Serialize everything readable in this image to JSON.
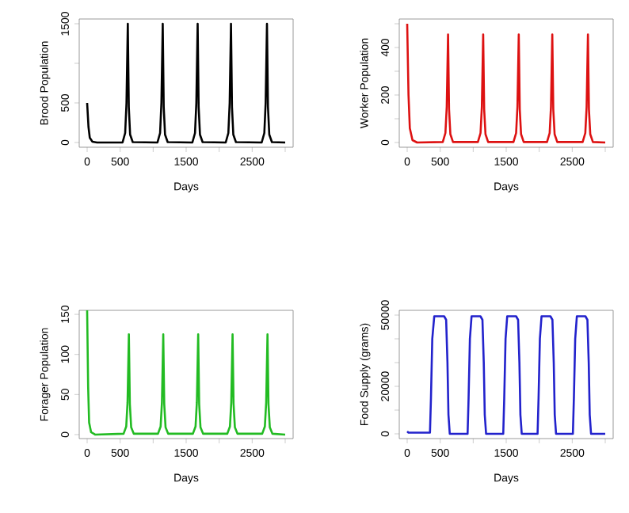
{
  "chart_data": [
    {
      "type": "line",
      "xlabel": "Days",
      "ylabel": "Brood Population",
      "xlim": [
        -120,
        3120
      ],
      "ylim": [
        -60,
        1560
      ],
      "xticks": [
        0,
        500,
        {
          "value": 1000,
          "label": null
        },
        1500,
        {
          "value": 2000,
          "label": null
        },
        2500,
        {
          "value": 3000,
          "label": null
        }
      ],
      "yticks": [
        0,
        500,
        {
          "value": 1000,
          "label": null
        },
        1500
      ],
      "x": [
        0,
        20,
        40,
        80,
        150,
        536,
        576,
        596,
        616,
        631,
        651,
        691,
        1065,
        1105,
        1125,
        1145,
        1160,
        1180,
        1220,
        1594,
        1634,
        1654,
        1674,
        1689,
        1709,
        1749,
        2099,
        2139,
        2159,
        2179,
        2194,
        2214,
        2254,
        2644,
        2684,
        2704,
        2724,
        2739,
        2759,
        2799,
        3000
      ],
      "series": [
        {
          "color": "#000000",
          "values": [
            500,
            200,
            60,
            10,
            0,
            0,
            120,
            500,
            1500,
            450,
            100,
            5,
            0,
            120,
            500,
            1500,
            450,
            100,
            5,
            0,
            120,
            500,
            1500,
            450,
            100,
            5,
            0,
            120,
            500,
            1500,
            450,
            100,
            5,
            0,
            120,
            500,
            1500,
            450,
            100,
            5,
            0
          ]
        }
      ]
    },
    {
      "type": "line",
      "xlabel": "Days",
      "ylabel": "Worker Population",
      "xlim": [
        -120,
        3120
      ],
      "ylim": [
        -20,
        520
      ],
      "xticks": [
        0,
        500,
        {
          "value": 1000,
          "label": null
        },
        1500,
        {
          "value": 2000,
          "label": null
        },
        2500,
        {
          "value": 3000,
          "label": null
        }
      ],
      "yticks": [
        0,
        {
          "value": 100,
          "label": null
        },
        200,
        {
          "value": 300,
          "label": null
        },
        400,
        {
          "value": 500,
          "label": null
        }
      ],
      "x": [
        0,
        20,
        40,
        80,
        150,
        539,
        579,
        599,
        619,
        634,
        654,
        694,
        1071,
        1111,
        1131,
        1151,
        1166,
        1186,
        1226,
        1610,
        1650,
        1670,
        1690,
        1705,
        1725,
        1765,
        2118,
        2158,
        2178,
        2198,
        2213,
        2233,
        2273,
        2658,
        2698,
        2718,
        2738,
        2753,
        2773,
        2813,
        3000
      ],
      "series": [
        {
          "color": "#dd1111",
          "values": [
            500,
            200,
            60,
            10,
            0,
            2,
            40,
            150,
            455,
            140,
            35,
            2,
            2,
            40,
            150,
            455,
            140,
            35,
            2,
            2,
            40,
            150,
            455,
            140,
            35,
            2,
            2,
            40,
            150,
            455,
            140,
            35,
            2,
            2,
            40,
            150,
            455,
            140,
            35,
            2,
            0
          ]
        }
      ]
    },
    {
      "type": "line",
      "xlabel": "Days",
      "ylabel": "Forager Population",
      "xlim": [
        -120,
        3120
      ],
      "ylim": [
        -5,
        155
      ],
      "xticks": [
        0,
        500,
        {
          "value": 1000,
          "label": null
        },
        1500,
        {
          "value": 2000,
          "label": null
        },
        2500,
        {
          "value": 3000,
          "label": null
        }
      ],
      "yticks": [
        0,
        50,
        100,
        150
      ],
      "x": [
        0,
        15,
        30,
        60,
        120,
        552,
        592,
        612,
        632,
        647,
        667,
        707,
        1073,
        1113,
        1133,
        1153,
        1168,
        1188,
        1228,
        1602,
        1642,
        1662,
        1682,
        1697,
        1717,
        1757,
        2123,
        2163,
        2183,
        2203,
        2218,
        2238,
        2278,
        2652,
        2692,
        2712,
        2732,
        2747,
        2767,
        2807,
        3000
      ],
      "series": [
        {
          "color": "#22bb22",
          "values": [
            155,
            60,
            15,
            3,
            0,
            1,
            10,
            40,
            125,
            38,
            9,
            1,
            1,
            10,
            40,
            125,
            38,
            9,
            1,
            1,
            10,
            40,
            125,
            38,
            9,
            1,
            1,
            10,
            40,
            125,
            38,
            9,
            1,
            1,
            10,
            40,
            125,
            38,
            9,
            1,
            0
          ]
        }
      ]
    },
    {
      "type": "line",
      "xlabel": "Days",
      "ylabel": "Food Supply (grams)",
      "xlim": [
        -120,
        3120
      ],
      "ylim": [
        -2000,
        52000
      ],
      "xticks": [
        0,
        500,
        {
          "value": 1000,
          "label": null
        },
        1500,
        {
          "value": 2000,
          "label": null
        },
        2500,
        {
          "value": 3000,
          "label": null
        }
      ],
      "yticks": [
        0,
        {
          "value": 10000,
          "label": null
        },
        20000,
        {
          "value": 30000,
          "label": null
        },
        {
          "value": 40000,
          "label": null
        },
        50000
      ],
      "x": [
        0,
        20,
        345,
        360,
        380,
        410,
        560,
        590,
        610,
        625,
        645,
        915,
        930,
        950,
        975,
        1110,
        1140,
        1160,
        1175,
        1195,
        1455,
        1470,
        1490,
        1515,
        1650,
        1680,
        1700,
        1715,
        1735,
        1975,
        1990,
        2010,
        2035,
        2170,
        2200,
        2220,
        2235,
        2255,
        2510,
        2525,
        2545,
        2570,
        2700,
        2730,
        2750,
        2765,
        2785,
        3000
      ],
      "series": [
        {
          "color": "#2222cc",
          "values": [
            1000,
            500,
            500,
            15000,
            40000,
            49500,
            49500,
            48000,
            30000,
            8000,
            0,
            0,
            15000,
            40000,
            49500,
            49500,
            48000,
            30000,
            8000,
            0,
            0,
            15000,
            40000,
            49500,
            49500,
            48000,
            30000,
            8000,
            0,
            0,
            15000,
            40000,
            49500,
            49500,
            48000,
            30000,
            8000,
            0,
            0,
            15000,
            40000,
            49500,
            49500,
            48000,
            30000,
            8000,
            0,
            0
          ]
        }
      ]
    }
  ]
}
